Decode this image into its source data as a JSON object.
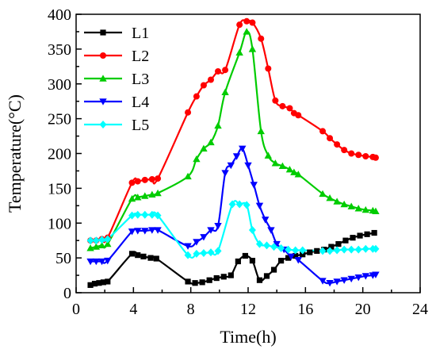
{
  "chart_data": {
    "type": "line",
    "xlabel": "Time(h)",
    "ylabel": "Temperature(°C)",
    "xlim": [
      0,
      24
    ],
    "ylim": [
      0,
      400
    ],
    "xticks": [
      "0",
      "4",
      "8",
      "12",
      "16",
      "20",
      "24"
    ],
    "yticks": [
      "0",
      "50",
      "100",
      "150",
      "200",
      "250",
      "300",
      "350",
      "400"
    ],
    "grid": false,
    "legend_position": "top-left",
    "series": [
      {
        "name": "L1",
        "color": "#000000",
        "marker": "square",
        "x": [
          1.0,
          1.3,
          1.6,
          1.9,
          2.2,
          3.9,
          4.3,
          4.7,
          5.2,
          5.6,
          7.8,
          8.3,
          8.8,
          9.3,
          9.8,
          10.3,
          10.8,
          11.3,
          11.8,
          12.3,
          12.8,
          13.3,
          13.8,
          14.3,
          14.8,
          15.3,
          15.8,
          16.3,
          16.8,
          17.3,
          17.8,
          18.3,
          18.8,
          19.3,
          19.8,
          20.3,
          20.8
        ],
        "y": [
          11,
          13,
          14,
          15,
          16,
          56,
          54,
          52,
          50,
          49,
          16,
          14,
          15,
          18,
          21,
          23,
          25,
          45,
          53,
          46,
          18,
          24,
          33,
          46,
          50,
          53,
          55,
          58,
          60,
          62,
          66,
          70,
          75,
          79,
          82,
          84,
          86
        ]
      },
      {
        "name": "L2",
        "color": "#ff0000",
        "marker": "circle",
        "x": [
          1.0,
          1.4,
          1.8,
          2.2,
          3.9,
          4.3,
          4.8,
          5.3,
          5.7,
          7.8,
          8.4,
          8.9,
          9.4,
          9.9,
          10.4,
          11.4,
          11.9,
          12.3,
          12.9,
          13.4,
          13.9,
          14.4,
          14.9,
          15.2,
          15.5,
          17.2,
          17.7,
          18.2,
          18.7,
          19.2,
          19.7,
          20.2,
          20.7,
          20.9
        ],
        "y": [
          75,
          75,
          77,
          79,
          158,
          160,
          162,
          163,
          164,
          259,
          282,
          298,
          306,
          318,
          320,
          385,
          390,
          388,
          365,
          322,
          276,
          268,
          265,
          258,
          255,
          232,
          222,
          213,
          205,
          200,
          198,
          196,
          195,
          194
        ]
      },
      {
        "name": "L3",
        "color": "#00cc00",
        "marker": "triangle-up",
        "x": [
          1.0,
          1.4,
          1.8,
          2.2,
          3.9,
          4.3,
          4.8,
          5.3,
          5.7,
          7.8,
          8.4,
          8.9,
          9.4,
          9.9,
          10.4,
          11.4,
          11.9,
          12.3,
          12.9,
          13.4,
          13.9,
          14.4,
          14.9,
          15.2,
          15.5,
          17.2,
          17.7,
          18.2,
          18.7,
          19.2,
          19.7,
          20.2,
          20.7,
          20.9
        ],
        "y": [
          64,
          66,
          68,
          70,
          135,
          137,
          139,
          141,
          143,
          167,
          192,
          207,
          216,
          240,
          288,
          345,
          375,
          350,
          232,
          197,
          186,
          182,
          177,
          173,
          170,
          142,
          136,
          131,
          127,
          124,
          121,
          119,
          118,
          117
        ]
      },
      {
        "name": "L4",
        "color": "#0000ff",
        "marker": "triangle-down",
        "x": [
          1.0,
          1.4,
          1.8,
          2.2,
          3.9,
          4.3,
          4.8,
          5.3,
          5.7,
          7.8,
          8.4,
          8.9,
          9.4,
          9.9,
          10.4,
          10.8,
          11.2,
          11.6,
          12.0,
          12.4,
          12.8,
          13.2,
          13.6,
          14.0,
          14.5,
          15.0,
          15.5,
          17.2,
          17.7,
          18.2,
          18.7,
          19.2,
          19.7,
          20.2,
          20.7,
          20.9
        ],
        "y": [
          45,
          45,
          45,
          46,
          88,
          89,
          89,
          90,
          90,
          67,
          73,
          80,
          90,
          96,
          172,
          183,
          196,
          207,
          183,
          155,
          125,
          105,
          90,
          70,
          62,
          52,
          47,
          17,
          14,
          16,
          18,
          20,
          22,
          24,
          25,
          26
        ]
      },
      {
        "name": "L5",
        "color": "#00ffff",
        "marker": "diamond",
        "x": [
          1.0,
          1.4,
          1.8,
          2.2,
          3.9,
          4.3,
          4.8,
          5.3,
          5.7,
          7.8,
          8.4,
          8.9,
          9.4,
          9.9,
          10.9,
          11.4,
          11.9,
          12.3,
          12.8,
          13.3,
          13.8,
          14.3,
          14.8,
          15.3,
          15.8,
          17.2,
          17.7,
          18.2,
          18.7,
          19.2,
          19.7,
          20.2,
          20.7,
          20.9
        ],
        "y": [
          75,
          75,
          76,
          77,
          111,
          112,
          112,
          112,
          111,
          54,
          56,
          57,
          58,
          60,
          127,
          127,
          126,
          90,
          70,
          68,
          66,
          64,
          62,
          61,
          61,
          60,
          60,
          61,
          62,
          62,
          62,
          63,
          63,
          63
        ]
      }
    ]
  }
}
